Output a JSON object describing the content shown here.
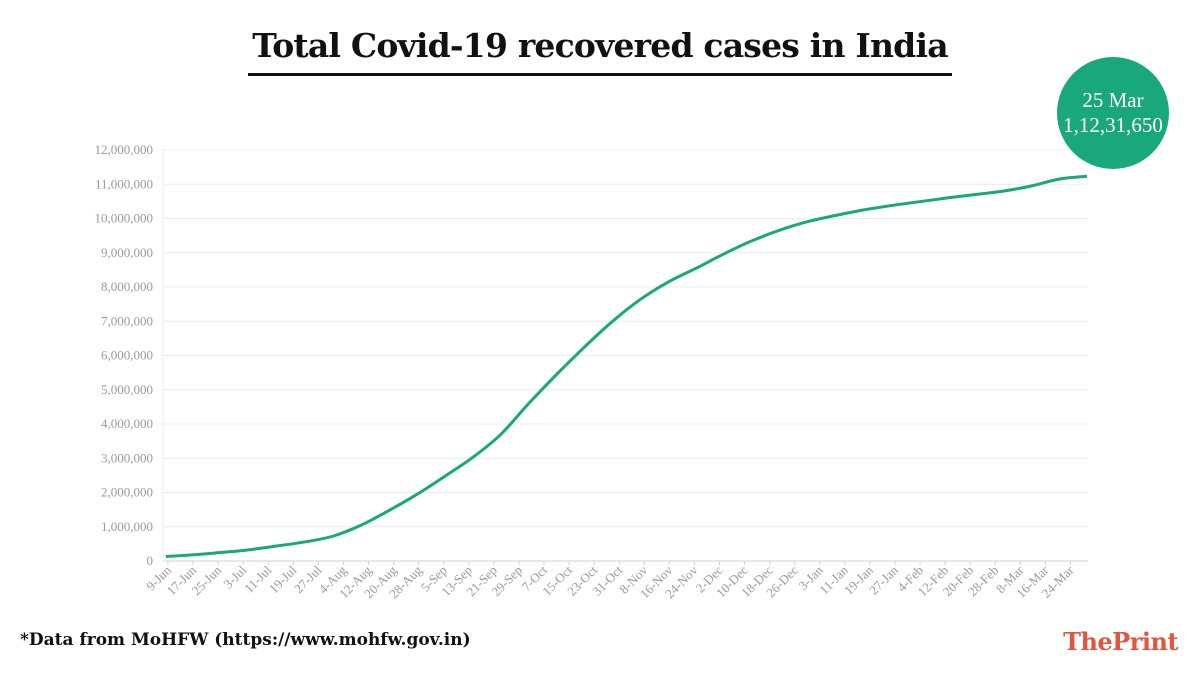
{
  "title": "Total Covid-19 recovered cases in India",
  "footnote": "*Data from MoHFW (https://www.mohfw.gov.in)",
  "brand": {
    "part1": "The",
    "part2": "Print"
  },
  "callout": {
    "date": "25 Mar",
    "value": "1,12,31,650"
  },
  "colors": {
    "line": "#18a879",
    "callout": "#18a879",
    "brand": "#e2553f",
    "grid": "#ececec",
    "axis": "#d0d0d0"
  },
  "chart_data": {
    "type": "line",
    "title": "Total Covid-19 recovered cases in India",
    "xlabel": "",
    "ylabel": "",
    "ylim": [
      0,
      12000000
    ],
    "y_ticks": [
      0,
      1000000,
      2000000,
      3000000,
      4000000,
      5000000,
      6000000,
      7000000,
      8000000,
      9000000,
      10000000,
      11000000,
      12000000
    ],
    "y_tick_labels": [
      "0",
      "1,000,000",
      "2,000,000",
      "3,000,000",
      "4,000,000",
      "5,000,000",
      "6,000,000",
      "7,000,000",
      "8,000,000",
      "9,000,000",
      "10,000,000",
      "11,000,000",
      "12,000,000"
    ],
    "x_tick_labels": [
      "9-Jun",
      "17-Jun",
      "25-Jun",
      "3-Jul",
      "11-Jul",
      "19-Jul",
      "27-Jul",
      "4-Aug",
      "12-Aug",
      "20-Aug",
      "28-Aug",
      "5-Sep",
      "13-Sep",
      "21-Sep",
      "29-Sep",
      "7-Oct",
      "15-Oct",
      "23-Oct",
      "31-Oct",
      "8-Nov",
      "16-Nov",
      "24-Nov",
      "2-Dec",
      "10-Dec",
      "18-Dec",
      "26-Dec",
      "3-Jan",
      "11-Jan",
      "19-Jan",
      "27-Jan",
      "4-Feb",
      "12-Feb",
      "20-Feb",
      "28-Feb",
      "8-Mar",
      "16-Mar",
      "24-Mar"
    ],
    "grid": true,
    "series": [
      {
        "values": [
          130000,
          180000,
          250000,
          330000,
          440000,
          560000,
          730000,
          1050000,
          1480000,
          1950000,
          2480000,
          3030000,
          3700000,
          4600000,
          5450000,
          6250000,
          7000000,
          7640000,
          8150000,
          8550000,
          8970000,
          9350000,
          9660000,
          9910000,
          10090000,
          10250000,
          10380000,
          10490000,
          10600000,
          10700000,
          10800000,
          10950000,
          11150000,
          11231650
        ]
      }
    ]
  }
}
